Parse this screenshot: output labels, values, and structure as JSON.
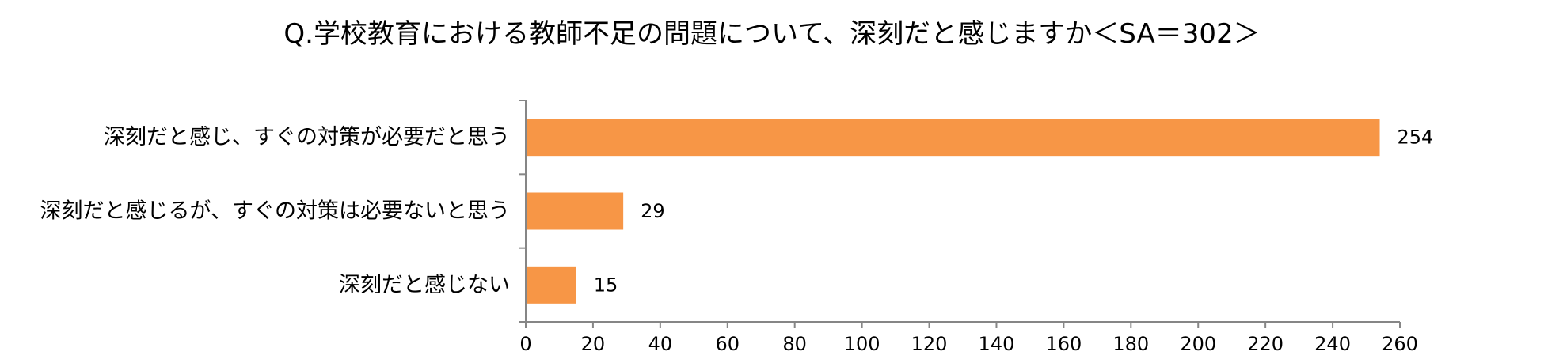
{
  "chart_data": {
    "type": "bar",
    "orientation": "horizontal",
    "title": "Q.学校教育における教師不足の問題について、深刻だと感じますか＜SA＝302＞",
    "categories": [
      "深刻だと感じ、すぐの対策が必要だと思う",
      "深刻だと感じるが、すぐの対策は必要ないと思う",
      "深刻だと感じない"
    ],
    "values": [
      254,
      29,
      15
    ],
    "xlim": [
      0,
      260
    ],
    "xticks": [
      0,
      20,
      40,
      60,
      80,
      100,
      120,
      140,
      160,
      180,
      200,
      220,
      240,
      260
    ],
    "grid": false,
    "legend": "none",
    "bar_color": "#F79646",
    "axis_color": "#868686"
  }
}
